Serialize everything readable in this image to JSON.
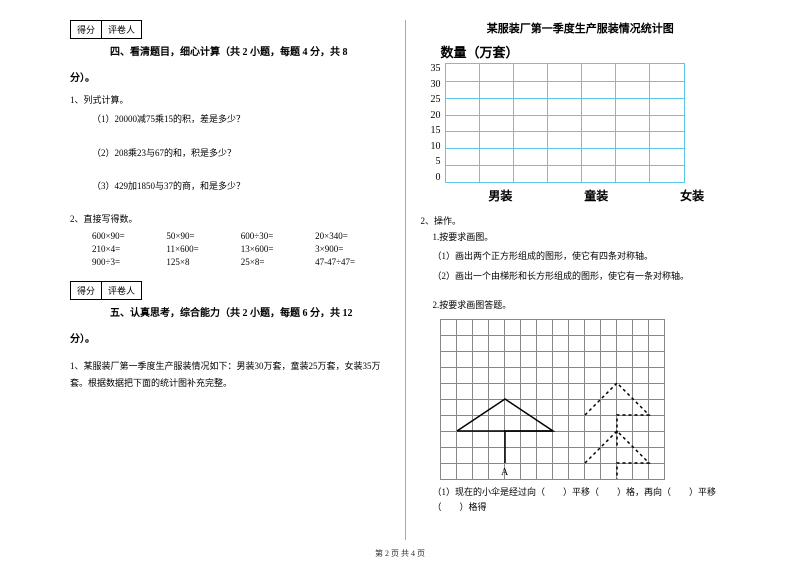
{
  "score_labels": {
    "score": "得分",
    "grader": "评卷人"
  },
  "section4": {
    "title": "四、看清题目，细心计算（共 2 小题，每题 4 分，共 8",
    "title_cont": "分）。"
  },
  "q1": {
    "head": "1、列式计算。",
    "s1": "（1）20000减75乘15的积，差是多少？",
    "s2": "（2）208乘23与67的和，积是多少？",
    "s3": "（3）429加1850与37的商，和是多少？"
  },
  "q2": {
    "head": "2、直接写得数。",
    "rows": [
      [
        "600×90=",
        "50×90=",
        "600÷30=",
        "20×340="
      ],
      [
        "210×4=",
        "11×600=",
        "13×600=",
        "3×900="
      ],
      [
        "900÷3=",
        "125×8",
        "25×8=",
        "47-47÷47="
      ]
    ]
  },
  "section5": {
    "title": "五、认真思考，综合能力（共 2 小题，每题 6 分，共 12",
    "title_cont": "分）。"
  },
  "q5_1": "1、某服装厂第一季度生产服装情况如下：男装30万套，童装25万套，女装35万套。根据数据把下面的统计图补充完整。",
  "chart": {
    "title": "某服装厂第一季度生产服装情况统计图",
    "ylabel": "数量（万套）",
    "yticks": [
      "35",
      "30",
      "25",
      "20",
      "15",
      "10",
      "5",
      "0"
    ],
    "xlabels": [
      "男装",
      "童装",
      "女装"
    ],
    "grid_color": "#5bc8e8",
    "cols": 7,
    "rows": 7
  },
  "ops": {
    "head": "2、操作。",
    "sub1head": "1.按要求画图。",
    "sub1a": "（1）画出两个正方形组成的图形，使它有四条对称轴。",
    "sub1b": "（2）画出一个由梯形和长方形组成的图形，使它有一条对称轴。",
    "sub2head": "2.按要求画图答题。",
    "sub2q": "（1）现在的小伞是经过向（　　）平移（　　）格，再向（　　）平移（　　）格得"
  },
  "label_A": "A",
  "footer": "第 2 页  共 4 页"
}
